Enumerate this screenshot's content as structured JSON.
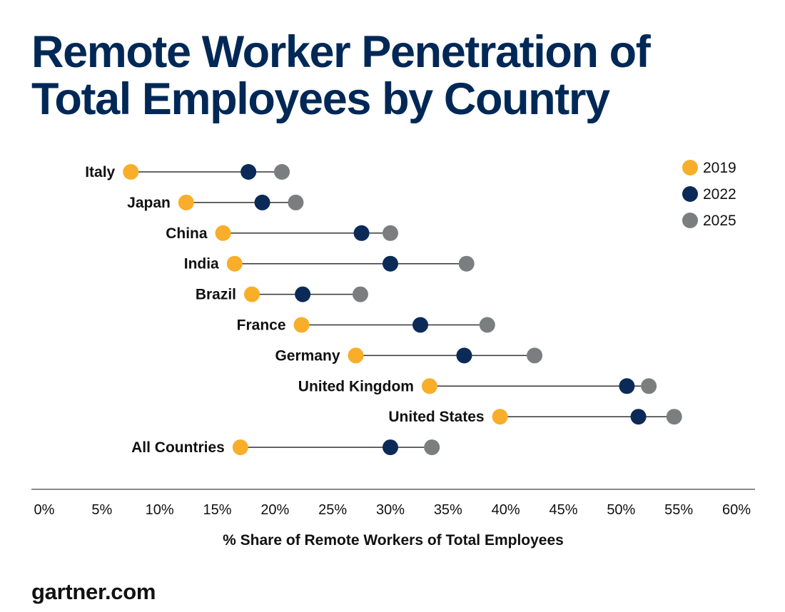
{
  "title_lines": [
    "Remote Worker Penetration of",
    "Total Employees by Country"
  ],
  "source": "gartner.com",
  "chart_data": {
    "type": "dumbbell",
    "xlabel": "% Share of Remote Workers of Total Employees",
    "xlim": [
      0,
      60
    ],
    "x_ticks": [
      "0%",
      "5%",
      "10%",
      "15%",
      "20%",
      "25%",
      "30%",
      "35%",
      "40%",
      "45%",
      "50%",
      "55%",
      "60%"
    ],
    "legend_position": "top-right",
    "categories": [
      "Italy",
      "Japan",
      "China",
      "India",
      "Brazil",
      "France",
      "Germany",
      "United Kingdom",
      "United States",
      "All Countries"
    ],
    "series": [
      {
        "name": "2019",
        "color": "#F8AE28",
        "values": [
          7.5,
          12.3,
          15.5,
          16.5,
          18.0,
          22.3,
          27.0,
          33.4,
          39.5,
          17.0
        ]
      },
      {
        "name": "2022",
        "color": "#0B2A57",
        "values": [
          17.7,
          18.9,
          27.5,
          30.0,
          22.4,
          32.6,
          36.4,
          50.5,
          51.5,
          30.0
        ]
      },
      {
        "name": "2025",
        "color": "#7B7E7F",
        "values": [
          20.6,
          21.8,
          30.0,
          36.6,
          27.4,
          38.4,
          42.5,
          52.4,
          54.6,
          33.6
        ]
      }
    ]
  }
}
